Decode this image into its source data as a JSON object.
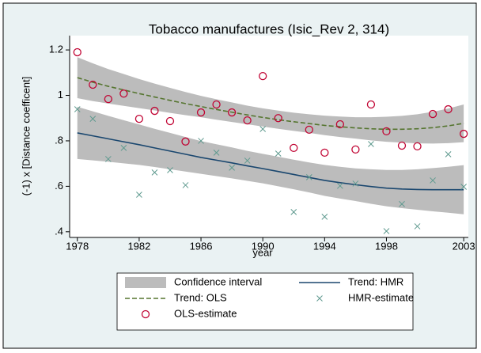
{
  "chart_data": {
    "type": "scatter",
    "title": "Tobacco manufactures (Isic_Rev 2, 314)",
    "x_label": "year",
    "y_label": "(-1) x [Distance coefficent]",
    "x": [
      1978,
      1979,
      1980,
      1981,
      1982,
      1983,
      1984,
      1985,
      1986,
      1987,
      1988,
      1989,
      1990,
      1991,
      1992,
      1993,
      1994,
      1995,
      1996,
      1997,
      1998,
      1999,
      2000,
      2001,
      2002,
      2003
    ],
    "xlim": [
      1977.5,
      2003.3
    ],
    "xticks": [
      1978,
      1982,
      1986,
      1990,
      1994,
      1998,
      2003
    ],
    "ylim": [
      0.375,
      1.263
    ],
    "yticks": [
      {
        "value": 0.4,
        "label": ".4"
      },
      {
        "value": 0.6,
        "label": ".6"
      },
      {
        "value": 0.8,
        "label": ".8"
      },
      1,
      1.2
    ],
    "grid": false,
    "confidence_interval": {
      "name": "Confidence interval",
      "color": "#bcbcbc",
      "bands": [
        {
          "upper": [
            1.168,
            1.141,
            1.116,
            1.094,
            1.072,
            1.052,
            1.033,
            1.015,
            0.998,
            0.983,
            0.969,
            0.955,
            0.943,
            0.933,
            0.924,
            0.917,
            0.911,
            0.907,
            0.904,
            0.904,
            0.906,
            0.91,
            0.917,
            0.928,
            0.942,
            0.96
          ],
          "lower": [
            0.988,
            0.975,
            0.964,
            0.954,
            0.944,
            0.934,
            0.923,
            0.913,
            0.904,
            0.893,
            0.883,
            0.873,
            0.863,
            0.853,
            0.844,
            0.835,
            0.825,
            0.817,
            0.81,
            0.802,
            0.796,
            0.792,
            0.789,
            0.788,
            0.79,
            0.794
          ]
        },
        {
          "upper": [
            0.95,
            0.93,
            0.91,
            0.891,
            0.872,
            0.853,
            0.835,
            0.817,
            0.799,
            0.785,
            0.771,
            0.756,
            0.743,
            0.73,
            0.717,
            0.705,
            0.694,
            0.686,
            0.679,
            0.675,
            0.672,
            0.672,
            0.675,
            0.68,
            0.686,
            0.693
          ],
          "lower": [
            0.72,
            0.714,
            0.708,
            0.701,
            0.694,
            0.685,
            0.675,
            0.665,
            0.655,
            0.645,
            0.635,
            0.624,
            0.613,
            0.6,
            0.587,
            0.573,
            0.558,
            0.546,
            0.535,
            0.523,
            0.512,
            0.504,
            0.497,
            0.49,
            0.484,
            0.477
          ]
        }
      ]
    },
    "series": [
      {
        "name": "Trend: HMR",
        "color": "#1a476f",
        "marker": "line",
        "values": [
          0.835,
          0.822,
          0.809,
          0.796,
          0.783,
          0.769,
          0.755,
          0.741,
          0.727,
          0.715,
          0.703,
          0.69,
          0.678,
          0.665,
          0.652,
          0.639,
          0.626,
          0.616,
          0.607,
          0.599,
          0.592,
          0.588,
          0.586,
          0.585,
          0.585,
          0.585
        ]
      },
      {
        "name": "Trend: OLS",
        "color": "#55752f",
        "marker": "dashed",
        "values": [
          1.078,
          1.058,
          1.04,
          1.024,
          1.008,
          0.993,
          0.978,
          0.964,
          0.951,
          0.938,
          0.926,
          0.914,
          0.903,
          0.893,
          0.884,
          0.876,
          0.868,
          0.862,
          0.857,
          0.853,
          0.851,
          0.851,
          0.853,
          0.858,
          0.866,
          0.877
        ]
      },
      {
        "name": "HMR-estimate",
        "color": "#5f9a8f",
        "marker": "x",
        "values": [
          0.939,
          0.897,
          0.72,
          0.769,
          0.563,
          0.661,
          0.671,
          0.605,
          0.8,
          0.748,
          0.682,
          0.713,
          0.852,
          0.744,
          0.487,
          0.64,
          0.466,
          0.602,
          0.612,
          0.786,
          0.403,
          0.522,
          0.424,
          0.626,
          0.741,
          0.598
        ]
      },
      {
        "name": "OLS-estimate",
        "color": "#c10534",
        "marker": "circle",
        "values": [
          1.19,
          1.047,
          0.984,
          1.008,
          0.897,
          0.932,
          0.887,
          0.797,
          0.925,
          0.96,
          0.925,
          0.89,
          1.085,
          0.9,
          0.769,
          0.849,
          0.748,
          0.873,
          0.762,
          0.96,
          0.842,
          0.779,
          0.776,
          0.918,
          0.939,
          0.831
        ]
      }
    ]
  }
}
